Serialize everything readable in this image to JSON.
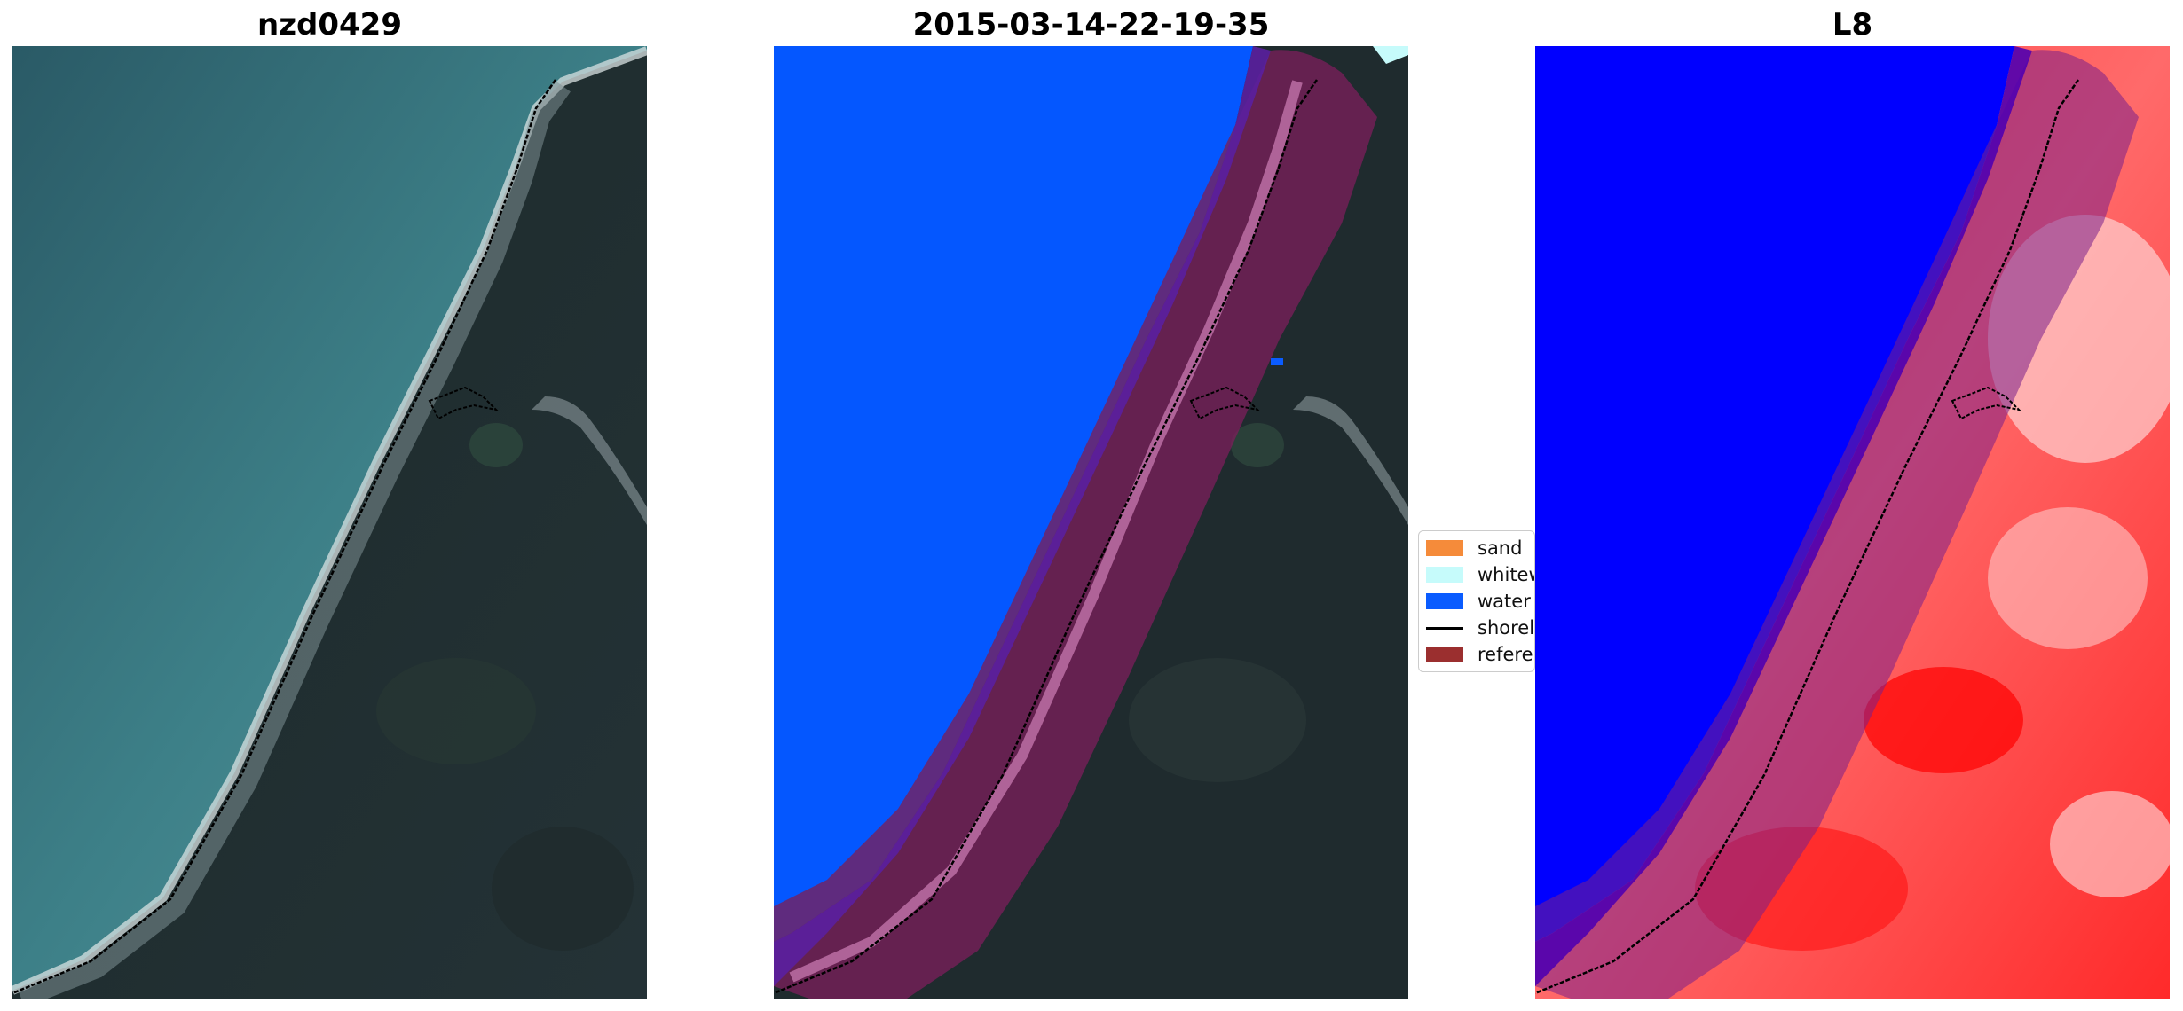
{
  "panels": [
    {
      "title": "nzd0429"
    },
    {
      "title": "2015-03-14-22-19-35"
    },
    {
      "title": "L8"
    }
  ],
  "legend": {
    "items": [
      {
        "label": "sand",
        "color": "#f58b3a"
      },
      {
        "label": "whitew",
        "color": "#c6fbfb"
      },
      {
        "label": "water",
        "color": "#0a5cff"
      },
      {
        "label": "shorel",
        "color": "#000000"
      },
      {
        "label": "referen",
        "color": "#9b2f2f"
      }
    ]
  },
  "colors": {
    "sea_rgb": "#3c7f86",
    "land_rgb": "#1f2c30",
    "water_class": "#0457ff",
    "buffer": "#7a1f8a",
    "ndwi_low": "#0000ff",
    "ndwi_high": "#ff1a1a"
  }
}
